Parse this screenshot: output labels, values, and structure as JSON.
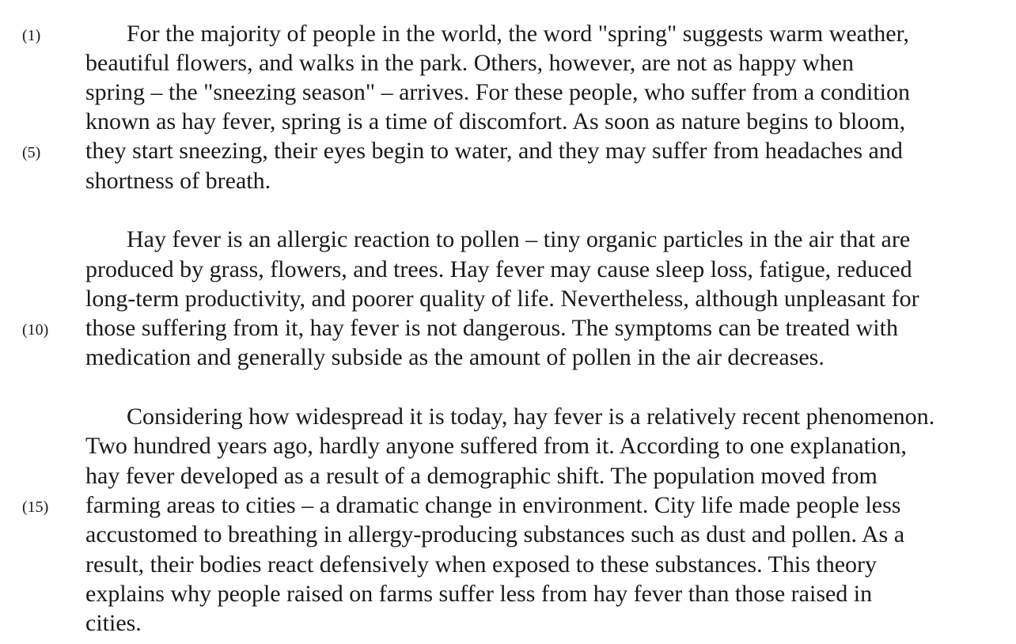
{
  "line_numbers": [
    "(1)",
    "(5)",
    "(10)",
    "(15)"
  ],
  "paragraphs": [
    {
      "lines": [
        "For the majority of people in the world, the word \"spring\" suggests warm weather,",
        "beautiful flowers, and walks in the park.  Others, however, are not as happy when",
        "spring – the \"sneezing season\" – arrives.  For these people, who suffer from a condition",
        "known as hay fever, spring is a time of discomfort.  As soon as nature begins to bloom,",
        "they start sneezing, their eyes begin to water, and they may suffer from headaches and",
        "shortness of breath."
      ]
    },
    {
      "lines": [
        "Hay fever is an allergic reaction to pollen – tiny organic particles in the air that are",
        "produced by grass, flowers, and trees.  Hay fever may cause sleep loss, fatigue, reduced",
        "long-term productivity, and poorer quality of life.  Nevertheless, although unpleasant for",
        "those suffering from it, hay fever is not dangerous.  The symptoms can be treated with",
        "medication and generally subside as the amount of pollen in the air decreases."
      ]
    },
    {
      "lines": [
        "Considering how widespread it is today, hay fever is a relatively recent phenomenon.",
        "Two hundred years ago, hardly anyone suffered from it.  According to one explanation,",
        "hay fever developed as a result of a demographic shift.  The population moved from",
        "farming areas to cities – a dramatic change in environment.  City life made people less",
        "accustomed to breathing in allergy-producing substances such as dust and pollen.  As a",
        "result, their bodies react defensively when exposed to these substances.  This theory",
        "explains why people raised on farms suffer less from hay fever than those raised in",
        "cities."
      ]
    }
  ]
}
